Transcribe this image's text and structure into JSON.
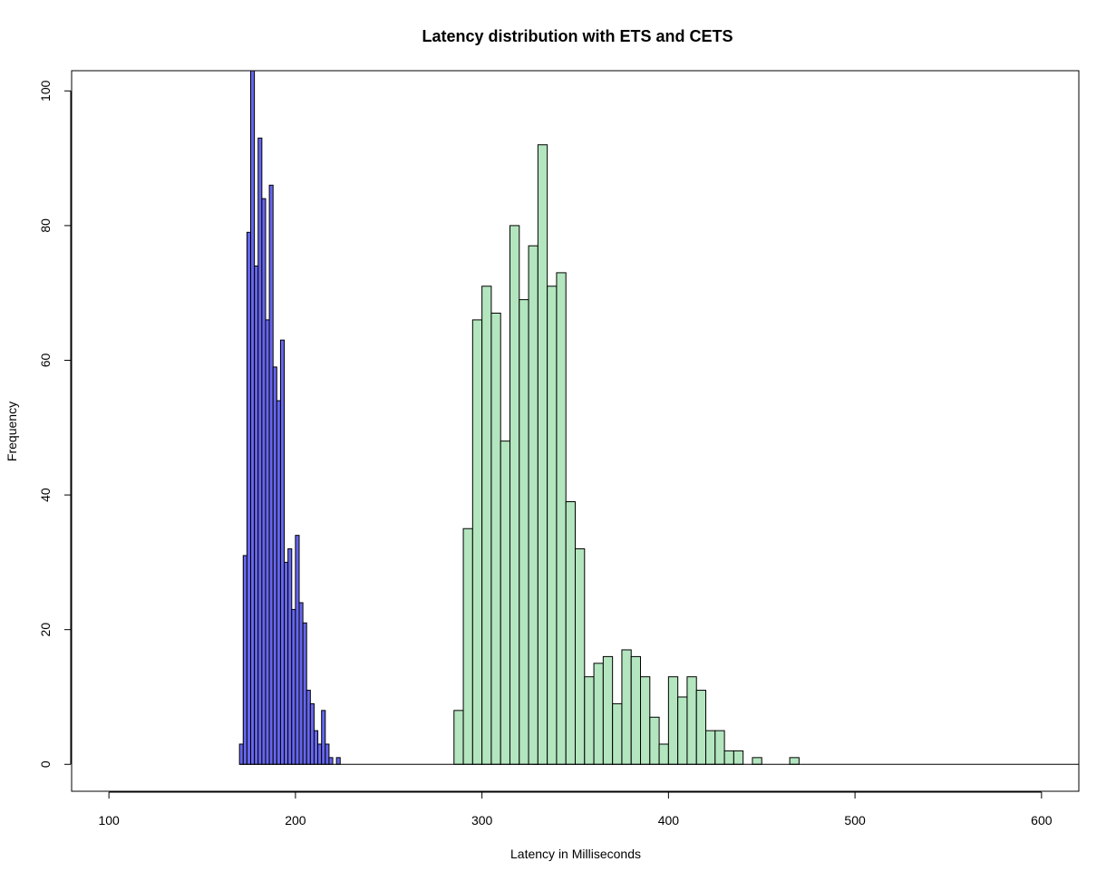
{
  "chart_data": {
    "type": "bar",
    "title": "Latency distribution with ETS and CETS",
    "xlabel": "Latency in Milliseconds",
    "ylabel": "Frequency",
    "xlim": [
      80,
      620
    ],
    "ylim": [
      -4,
      103
    ],
    "x_ticks": [
      "100",
      "200",
      "300",
      "400",
      "500",
      "600"
    ],
    "y_ticks": [
      "0",
      "20",
      "40",
      "60",
      "80",
      "100"
    ],
    "grid": false,
    "legend": "none",
    "baseline_line": {
      "from": 170,
      "to": 620
    },
    "series": [
      {
        "fill": "#6666ee",
        "bin_width": 2,
        "bins": [
          [
            170,
            3
          ],
          [
            172,
            31
          ],
          [
            174,
            79
          ],
          [
            176,
            103
          ],
          [
            178,
            74
          ],
          [
            180,
            93
          ],
          [
            182,
            84
          ],
          [
            184,
            66
          ],
          [
            186,
            86
          ],
          [
            188,
            59
          ],
          [
            190,
            54
          ],
          [
            192,
            63
          ],
          [
            194,
            30
          ],
          [
            196,
            32
          ],
          [
            198,
            23
          ],
          [
            200,
            34
          ],
          [
            202,
            24
          ],
          [
            204,
            21
          ],
          [
            206,
            11
          ],
          [
            208,
            9
          ],
          [
            210,
            5
          ],
          [
            212,
            3
          ],
          [
            214,
            8
          ],
          [
            216,
            3
          ],
          [
            218,
            1
          ],
          [
            220,
            0
          ],
          [
            222,
            1
          ],
          [
            328,
            1
          ]
        ]
      },
      {
        "fill": "#b3e5bf",
        "bin_width": 5,
        "bins": [
          [
            285,
            8
          ],
          [
            290,
            35
          ],
          [
            295,
            66
          ],
          [
            300,
            71
          ],
          [
            305,
            67
          ],
          [
            310,
            48
          ],
          [
            315,
            80
          ],
          [
            320,
            69
          ],
          [
            325,
            77
          ],
          [
            330,
            92
          ],
          [
            335,
            71
          ],
          [
            340,
            73
          ],
          [
            345,
            39
          ],
          [
            350,
            32
          ],
          [
            355,
            13
          ],
          [
            360,
            15
          ],
          [
            365,
            16
          ],
          [
            370,
            9
          ],
          [
            375,
            17
          ],
          [
            380,
            16
          ],
          [
            385,
            13
          ],
          [
            390,
            7
          ],
          [
            395,
            3
          ],
          [
            400,
            13
          ],
          [
            405,
            10
          ],
          [
            410,
            13
          ],
          [
            415,
            11
          ],
          [
            420,
            5
          ],
          [
            425,
            5
          ],
          [
            430,
            2
          ],
          [
            435,
            2
          ],
          [
            440,
            0
          ],
          [
            445,
            1
          ],
          [
            450,
            0
          ],
          [
            455,
            0
          ],
          [
            460,
            0
          ],
          [
            465,
            1
          ]
        ]
      }
    ]
  }
}
